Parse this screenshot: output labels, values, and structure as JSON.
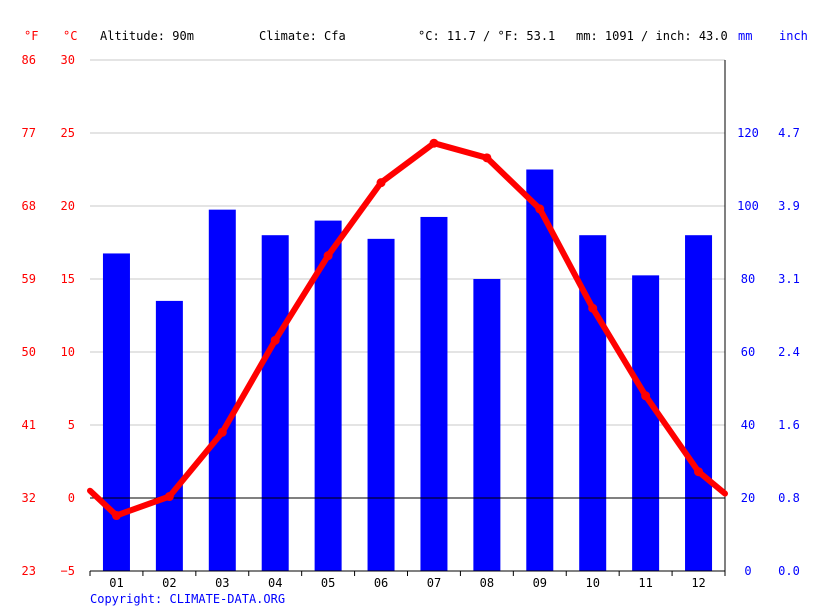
{
  "header": {
    "unit_f": "°F",
    "unit_c": "°C",
    "altitude": "Altitude: 90m",
    "climate": "Climate: Cfa",
    "temp_avg": "°C: 11.7 / °F: 53.1",
    "precip_avg": "mm: 1091 / inch: 43.0",
    "unit_mm": "mm",
    "unit_inch": "inch"
  },
  "footer": {
    "copyright": "Copyright: CLIMATE-DATA.ORG"
  },
  "chart_data": {
    "type": "bar",
    "categories": [
      "01",
      "02",
      "03",
      "04",
      "05",
      "06",
      "07",
      "08",
      "09",
      "10",
      "11",
      "12"
    ],
    "series": [
      {
        "kind": "bar",
        "axis": "right",
        "values": [
          87,
          74,
          99,
          92,
          96,
          91,
          97,
          80,
          110,
          92,
          81,
          92
        ]
      },
      {
        "kind": "line",
        "axis": "left",
        "values": [
          -1.2,
          0.1,
          4.5,
          10.8,
          16.6,
          21.6,
          24.3,
          23.3,
          19.8,
          13.0,
          7.0,
          1.8
        ]
      }
    ],
    "line_edges": {
      "start": 0.5,
      "end": 0.3
    },
    "left_axis": {
      "c_ticks": [
        "30",
        "25",
        "20",
        "15",
        "10",
        "5",
        "0",
        "−5"
      ],
      "f_ticks": [
        "86",
        "77",
        "68",
        "59",
        "50",
        "41",
        "32",
        "23"
      ],
      "ylim": [
        -5,
        30
      ]
    },
    "right_axis": {
      "mm_ticks": [
        "120",
        "100",
        "80",
        "60",
        "40",
        "20",
        "0"
      ],
      "inch_ticks": [
        "4.7",
        "3.9",
        "3.1",
        "2.4",
        "1.6",
        "0.8",
        "0.0"
      ],
      "ylim": [
        0,
        140
      ]
    },
    "grid": true,
    "colors": {
      "bars": "#0000ff",
      "line": "#ff0000",
      "left_axis": "#ff0000",
      "right_axis": "#0000ff"
    }
  }
}
